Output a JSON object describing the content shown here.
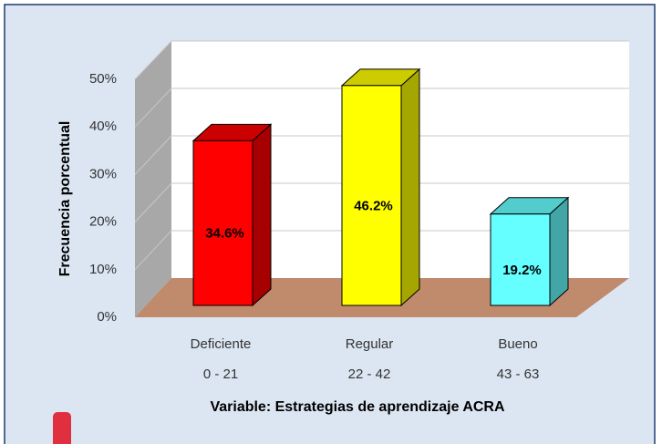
{
  "chart_data": {
    "type": "bar3d",
    "categories": [
      "Deficiente",
      "Regular",
      "Bueno"
    ],
    "subcategories": [
      "0 - 21",
      "22 - 42",
      "43 - 63"
    ],
    "values": [
      34.6,
      46.2,
      19.2
    ],
    "value_labels": [
      "34.6%",
      "46.2%",
      "19.2%"
    ],
    "colors": [
      "#ff0000",
      "#ffff00",
      "#66ffff"
    ],
    "xlabel": "Variable: Estrategias de aprendizaje ACRA",
    "ylabel": "Frecuencia porcentual",
    "ylim": [
      0,
      50
    ],
    "yticks": [
      {
        "value": 0,
        "label": "0%"
      },
      {
        "value": 10,
        "label": "10%"
      },
      {
        "value": 20,
        "label": "20%"
      },
      {
        "value": 30,
        "label": "30%"
      },
      {
        "value": 40,
        "label": "40%"
      },
      {
        "value": 50,
        "label": "50%"
      }
    ],
    "grid": true
  }
}
